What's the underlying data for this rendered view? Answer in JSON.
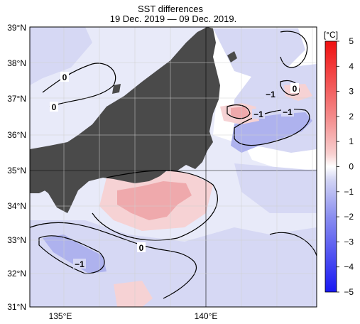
{
  "header": {
    "title": "SST differences",
    "subtitle": "19 Dec. 2019 — 09 Dec. 2019."
  },
  "axes": {
    "lat_labels": [
      "39°N",
      "38°N",
      "37°N",
      "36°N",
      "35°N",
      "34°N",
      "33°N",
      "32°N",
      "31°N"
    ],
    "lon_labels": [
      "135°E",
      "140°E"
    ]
  },
  "colorbar": {
    "unit": "[°C]",
    "ticks": [
      "5",
      "4",
      "3",
      "2",
      "1",
      "0",
      "−1",
      "−2",
      "−3",
      "−4",
      "−5"
    ],
    "colors": {
      "warm_max": "#f01010",
      "warm_mid": "#f48a8a",
      "warm_low": "#f8d0d0",
      "neutral": "#ffffff",
      "cool_low": "#d4d6f4",
      "cool_mid": "#8a8ef0",
      "cool_max": "#1818f2"
    }
  },
  "contour_labels": [
    "0",
    "0",
    "0",
    "0",
    "−1",
    "−1",
    "−1",
    "−1"
  ],
  "map_colors": {
    "land": "#4a4a4a",
    "grid": "#000000",
    "light_blue": "#d6d8f4",
    "mid_blue": "#aeb2ee",
    "light_pink": "#f6d2d4",
    "mid_pink": "#efa9ac"
  }
}
